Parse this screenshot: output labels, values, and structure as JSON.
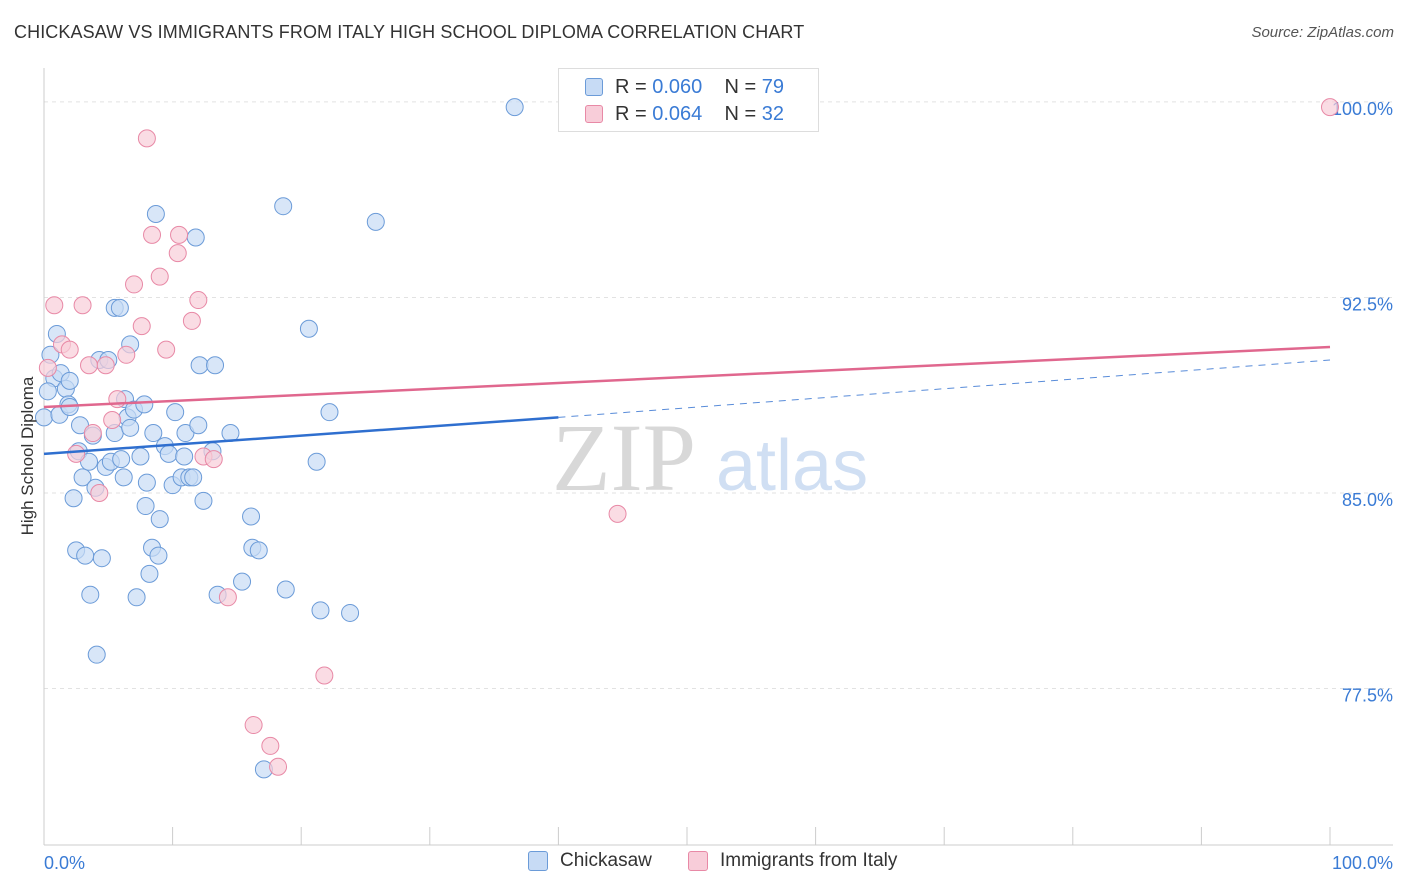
{
  "chart_data": {
    "type": "scatter",
    "title": "CHICKASAW VS IMMIGRANTS FROM ITALY HIGH SCHOOL DIPLOMA CORRELATION CHART",
    "source": "Source: ZipAtlas.com",
    "xlabel": "",
    "ylabel": "High School Diploma",
    "xlim": [
      0,
      105
    ],
    "ylim": [
      71.5,
      101.3
    ],
    "x_tick_labels": {
      "left": "0.0%",
      "right": "100.0%"
    },
    "y_ticks": [
      {
        "value": 77.5,
        "label": "77.5%"
      },
      {
        "value": 85.0,
        "label": "85.0%"
      },
      {
        "value": 92.5,
        "label": "92.5%"
      },
      {
        "value": 100.0,
        "label": "100.0%"
      }
    ],
    "watermark": {
      "part1": "ZIP",
      "part2": "atlas"
    },
    "legend": [
      {
        "r_label": "R =",
        "r_value": "0.060",
        "n_label": "N =",
        "n_value": "79"
      },
      {
        "r_label": "R =",
        "r_value": "0.064",
        "n_label": "N =",
        "n_value": "32"
      }
    ],
    "colors": {
      "chickasaw_fill": "#c7dbf5",
      "chickasaw_stroke": "#6b9bd8",
      "chickasaw_line": "#2f6fcf",
      "italy_fill": "#f8cdd9",
      "italy_stroke": "#e889a6",
      "italy_line": "#e0678e",
      "grid": "#e2e2e2",
      "axis_text": "#3a7bd5"
    },
    "series": [
      {
        "name": "Chickasaw",
        "trend": {
          "x0": 0,
          "y0": 86.5,
          "x1": 40,
          "y1": 87.9,
          "dash_x1": 100,
          "dash_y1": 90.1
        },
        "points": [
          [
            0.0,
            87.9
          ],
          [
            0.5,
            90.3
          ],
          [
            0.8,
            89.4
          ],
          [
            1.0,
            91.1
          ],
          [
            1.2,
            88.0
          ],
          [
            1.3,
            89.6
          ],
          [
            1.7,
            89.0
          ],
          [
            1.9,
            88.4
          ],
          [
            2.0,
            89.3
          ],
          [
            2.0,
            88.3
          ],
          [
            2.3,
            84.8
          ],
          [
            2.5,
            82.8
          ],
          [
            2.7,
            86.6
          ],
          [
            2.8,
            87.6
          ],
          [
            3.0,
            85.6
          ],
          [
            3.2,
            82.6
          ],
          [
            3.5,
            86.2
          ],
          [
            3.6,
            81.1
          ],
          [
            3.8,
            87.2
          ],
          [
            4.0,
            85.2
          ],
          [
            4.1,
            78.8
          ],
          [
            4.3,
            90.1
          ],
          [
            4.5,
            82.5
          ],
          [
            4.8,
            86.0
          ],
          [
            5.0,
            90.1
          ],
          [
            5.2,
            86.2
          ],
          [
            5.5,
            92.1
          ],
          [
            5.5,
            87.3
          ],
          [
            5.9,
            92.1
          ],
          [
            6.0,
            86.3
          ],
          [
            6.2,
            85.6
          ],
          [
            6.3,
            88.6
          ],
          [
            6.5,
            87.9
          ],
          [
            6.7,
            90.7
          ],
          [
            6.7,
            87.5
          ],
          [
            7.0,
            88.2
          ],
          [
            7.2,
            81.0
          ],
          [
            7.5,
            86.4
          ],
          [
            7.8,
            88.4
          ],
          [
            7.9,
            84.5
          ],
          [
            8.0,
            85.4
          ],
          [
            8.2,
            81.9
          ],
          [
            8.4,
            82.9
          ],
          [
            8.5,
            87.3
          ],
          [
            8.7,
            95.7
          ],
          [
            8.9,
            82.6
          ],
          [
            9.0,
            84.0
          ],
          [
            9.4,
            86.8
          ],
          [
            9.7,
            86.5
          ],
          [
            10.0,
            85.3
          ],
          [
            10.2,
            88.1
          ],
          [
            10.7,
            85.6
          ],
          [
            10.9,
            86.4
          ],
          [
            11.0,
            87.3
          ],
          [
            11.3,
            85.6
          ],
          [
            11.6,
            85.6
          ],
          [
            11.8,
            94.8
          ],
          [
            12.0,
            87.6
          ],
          [
            12.1,
            89.9
          ],
          [
            12.4,
            84.7
          ],
          [
            13.1,
            86.6
          ],
          [
            13.3,
            89.9
          ],
          [
            13.5,
            81.1
          ],
          [
            14.5,
            87.3
          ],
          [
            15.4,
            81.6
          ],
          [
            16.1,
            84.1
          ],
          [
            16.2,
            82.9
          ],
          [
            16.7,
            82.8
          ],
          [
            17.1,
            74.4
          ],
          [
            18.6,
            96.0
          ],
          [
            18.8,
            81.3
          ],
          [
            20.6,
            91.3
          ],
          [
            21.2,
            86.2
          ],
          [
            21.5,
            80.5
          ],
          [
            22.2,
            88.1
          ],
          [
            23.8,
            80.4
          ],
          [
            25.8,
            95.4
          ],
          [
            36.6,
            99.8
          ],
          [
            0.3,
            88.9
          ]
        ]
      },
      {
        "name": "Immigrants from Italy",
        "trend": {
          "x0": 0,
          "y0": 88.3,
          "x1": 100,
          "y1": 90.6
        },
        "points": [
          [
            0.3,
            89.8
          ],
          [
            0.8,
            92.2
          ],
          [
            1.4,
            90.7
          ],
          [
            2.0,
            90.5
          ],
          [
            2.5,
            86.5
          ],
          [
            3.0,
            92.2
          ],
          [
            3.5,
            89.9
          ],
          [
            3.8,
            87.3
          ],
          [
            4.3,
            85.0
          ],
          [
            4.8,
            89.9
          ],
          [
            5.3,
            87.8
          ],
          [
            5.7,
            88.6
          ],
          [
            6.4,
            90.3
          ],
          [
            7.0,
            93.0
          ],
          [
            7.6,
            91.4
          ],
          [
            8.0,
            98.6
          ],
          [
            8.4,
            94.9
          ],
          [
            9.0,
            93.3
          ],
          [
            9.5,
            90.5
          ],
          [
            10.4,
            94.2
          ],
          [
            10.5,
            94.9
          ],
          [
            11.5,
            91.6
          ],
          [
            12.0,
            92.4
          ],
          [
            12.4,
            86.4
          ],
          [
            13.2,
            86.3
          ],
          [
            14.3,
            81.0
          ],
          [
            16.3,
            76.1
          ],
          [
            17.6,
            75.3
          ],
          [
            18.2,
            74.5
          ],
          [
            21.8,
            78.0
          ],
          [
            44.6,
            84.2
          ],
          [
            100.0,
            99.8
          ]
        ]
      }
    ]
  },
  "legend_series_names": {
    "a": "Chickasaw",
    "b": "Immigrants from Italy"
  }
}
